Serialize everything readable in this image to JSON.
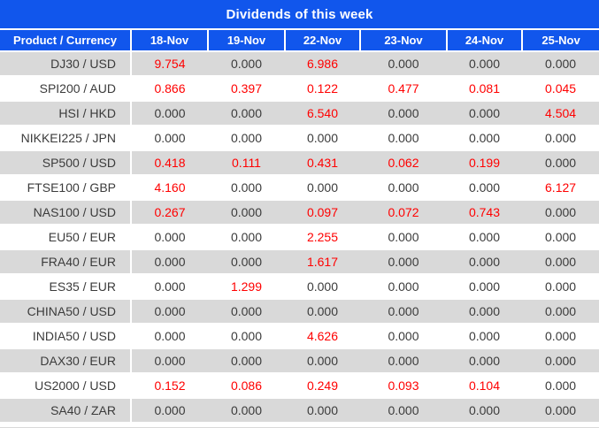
{
  "chart_data": {
    "type": "table",
    "title": "Dividends of this week",
    "columns": [
      "Product / Currency",
      "18-Nov",
      "19-Nov",
      "22-Nov",
      "23-Nov",
      "24-Nov",
      "25-Nov"
    ],
    "rows": [
      {
        "product": "DJ30 / USD",
        "values": [
          "9.754",
          "0.000",
          "6.986",
          "0.000",
          "0.000",
          "0.000"
        ]
      },
      {
        "product": "SPI200 / AUD",
        "values": [
          "0.866",
          "0.397",
          "0.122",
          "0.477",
          "0.081",
          "0.045"
        ]
      },
      {
        "product": "HSI / HKD",
        "values": [
          "0.000",
          "0.000",
          "6.540",
          "0.000",
          "0.000",
          "4.504"
        ]
      },
      {
        "product": "NIKKEI225 / JPN",
        "values": [
          "0.000",
          "0.000",
          "0.000",
          "0.000",
          "0.000",
          "0.000"
        ]
      },
      {
        "product": "SP500 / USD",
        "values": [
          "0.418",
          "0.111",
          "0.431",
          "0.062",
          "0.199",
          "0.000"
        ]
      },
      {
        "product": "FTSE100 / GBP",
        "values": [
          "4.160",
          "0.000",
          "0.000",
          "0.000",
          "0.000",
          "6.127"
        ]
      },
      {
        "product": "NAS100 / USD",
        "values": [
          "0.267",
          "0.000",
          "0.097",
          "0.072",
          "0.743",
          "0.000"
        ]
      },
      {
        "product": "EU50 / EUR",
        "values": [
          "0.000",
          "0.000",
          "2.255",
          "0.000",
          "0.000",
          "0.000"
        ]
      },
      {
        "product": "FRA40 / EUR",
        "values": [
          "0.000",
          "0.000",
          "1.617",
          "0.000",
          "0.000",
          "0.000"
        ]
      },
      {
        "product": "ES35 / EUR",
        "values": [
          "0.000",
          "1.299",
          "0.000",
          "0.000",
          "0.000",
          "0.000"
        ]
      },
      {
        "product": "CHINA50 / USD",
        "values": [
          "0.000",
          "0.000",
          "0.000",
          "0.000",
          "0.000",
          "0.000"
        ]
      },
      {
        "product": "INDIA50 / USD",
        "values": [
          "0.000",
          "0.000",
          "4.626",
          "0.000",
          "0.000",
          "0.000"
        ]
      },
      {
        "product": "DAX30 / EUR",
        "values": [
          "0.000",
          "0.000",
          "0.000",
          "0.000",
          "0.000",
          "0.000"
        ]
      },
      {
        "product": "US2000 / USD",
        "values": [
          "0.152",
          "0.086",
          "0.249",
          "0.093",
          "0.104",
          "0.000"
        ]
      },
      {
        "product": "SA40 / ZAR",
        "values": [
          "0.000",
          "0.000",
          "0.000",
          "0.000",
          "0.000",
          "0.000"
        ]
      }
    ],
    "value_style_rule": "non-zero dividend values rendered in red, zero values in dark gray",
    "legend_position": "none",
    "grid": "row separators only"
  },
  "colors": {
    "header_bg": "#1156ec",
    "header_text": "#ffffff",
    "row_alt_bg": "#d9d9d9",
    "text_dark": "#3b3b3b",
    "value_red": "#ff0000"
  }
}
